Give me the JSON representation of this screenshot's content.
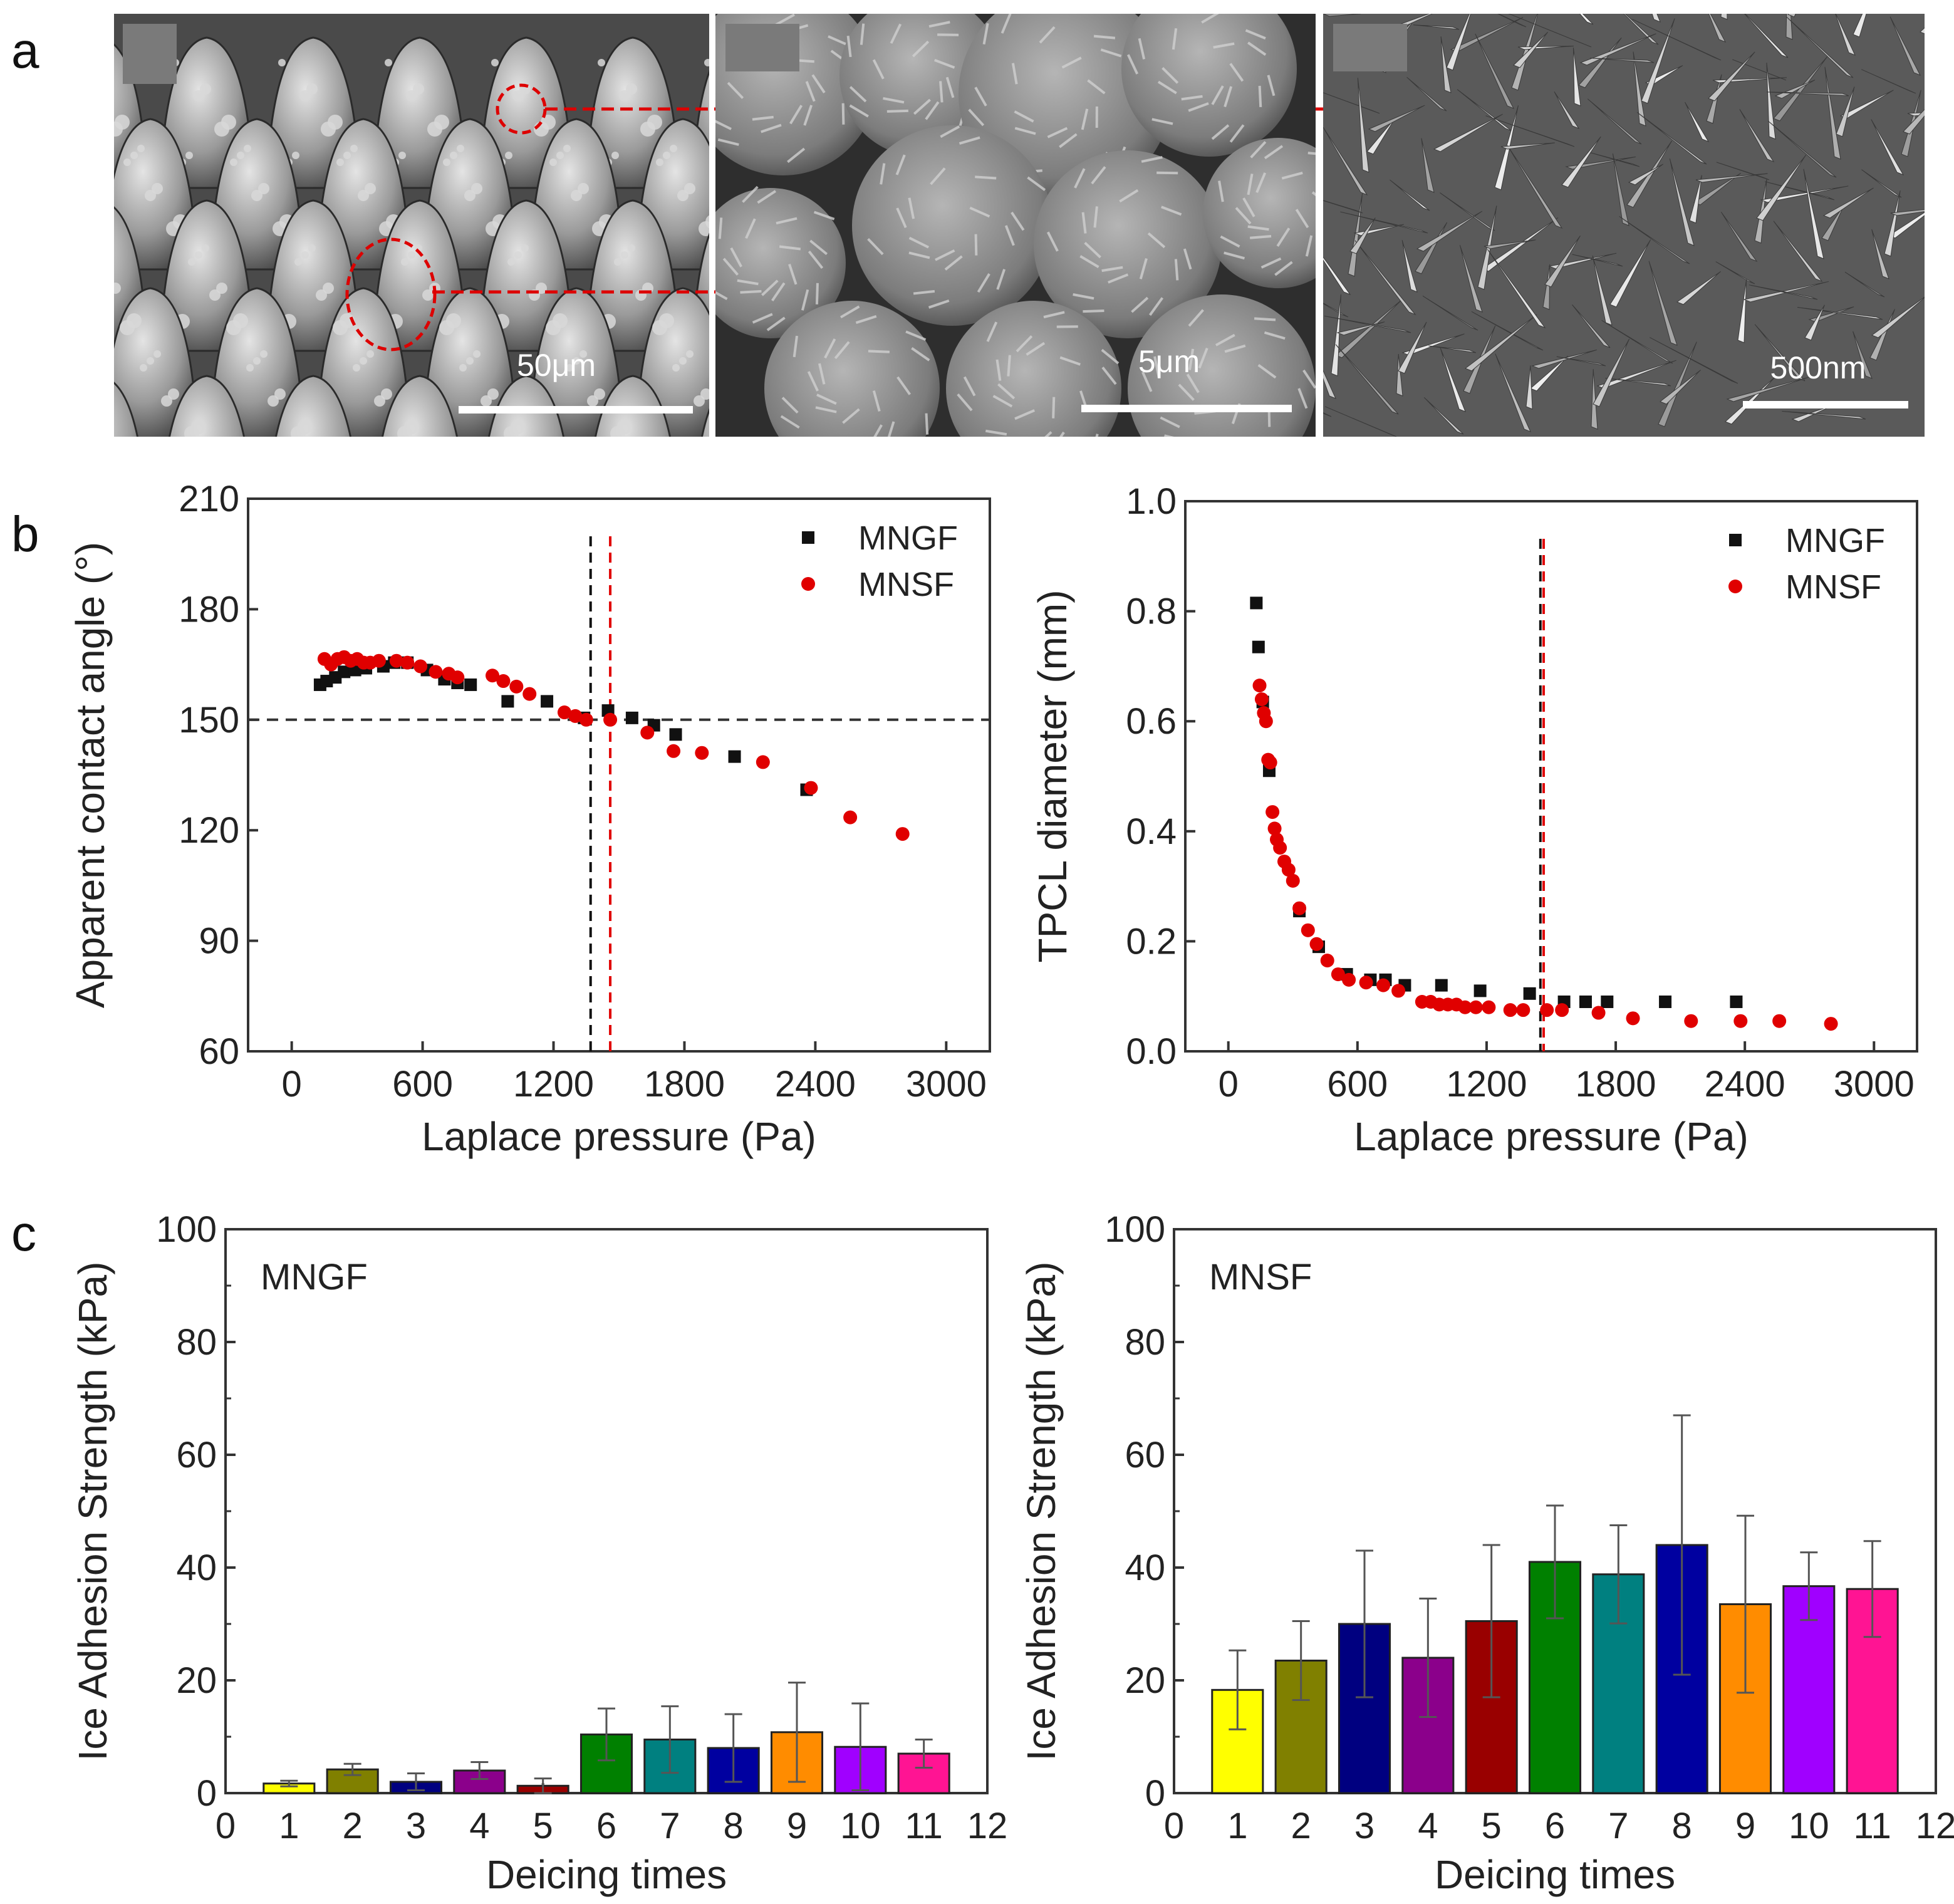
{
  "panel_labels": {
    "a": "a",
    "b": "b",
    "c": "c"
  },
  "colors": {
    "mngf": "#111111",
    "mnsf": "#e00000",
    "axis": "#333333",
    "bars": [
      "#ffff00",
      "#808000",
      "#000080",
      "#8b008b",
      "#990000",
      "#008000",
      "#008080",
      "#0000a0",
      "#ff8c00",
      "#a000ff",
      "#ff1493"
    ]
  },
  "sem_images": [
    {
      "scale_label": "50μm",
      "description_icon": "sem-micro-cone-icon"
    },
    {
      "scale_label": "5μm",
      "description_icon": "sem-nanoflower-icon"
    },
    {
      "scale_label": "500nm",
      "description_icon": "sem-nanosheet-icon"
    }
  ],
  "chart_data": [
    {
      "id": "contact-angle",
      "type": "scatter",
      "title": "",
      "xlabel": "Laplace pressure (Pa)",
      "ylabel": "Apparent contact angle (°)",
      "xlim": [
        -200,
        3200
      ],
      "ylim": [
        60,
        210
      ],
      "xticks": [
        0,
        600,
        1200,
        1800,
        2400,
        3000
      ],
      "yticks": [
        60,
        90,
        120,
        150,
        180,
        210
      ],
      "legend_position": "top-right",
      "reference_lines": {
        "horizontal": [
          150
        ],
        "vertical_mngf": 1370,
        "vertical_mnsf": 1460
      },
      "series": [
        {
          "name": "MNGF",
          "marker": "square",
          "x": [
            130,
            160,
            200,
            240,
            290,
            340,
            420,
            470,
            530,
            620,
            700,
            760,
            820,
            990,
            1170,
            1340,
            1450,
            1560,
            1660,
            1760,
            2030,
            2360
          ],
          "y": [
            159.5,
            160.5,
            161.5,
            163,
            163.5,
            164,
            164.5,
            165.5,
            165.5,
            163.5,
            161,
            160,
            159.5,
            155,
            155,
            150.5,
            152.5,
            150.5,
            148.5,
            146,
            140,
            131
          ]
        },
        {
          "name": "MNSF",
          "marker": "circle",
          "x": [
            150,
            180,
            210,
            240,
            270,
            300,
            330,
            360,
            400,
            480,
            530,
            590,
            660,
            720,
            760,
            920,
            970,
            1030,
            1090,
            1250,
            1300,
            1350,
            1460,
            1630,
            1750,
            1880,
            2160,
            2380,
            2560,
            2800
          ],
          "y": [
            166.5,
            165,
            166.5,
            167,
            166,
            166.5,
            165.5,
            165.5,
            166,
            166,
            165.5,
            164.5,
            163,
            162.5,
            161.5,
            162,
            160.5,
            159,
            157,
            152,
            151,
            150,
            150,
            146.5,
            141.5,
            141,
            138.5,
            131.5,
            123.5,
            119
          ]
        }
      ]
    },
    {
      "id": "tpcl-diameter",
      "type": "scatter",
      "title": "",
      "xlabel": "Laplace pressure (Pa)",
      "ylabel": "TPCL diameter (mm)",
      "xlim": [
        -200,
        3200
      ],
      "ylim": [
        0.0,
        1.0
      ],
      "xticks": [
        0,
        600,
        1200,
        1800,
        2400,
        3000
      ],
      "yticks": [
        0.0,
        0.2,
        0.4,
        0.6,
        0.8,
        1.0
      ],
      "legend_position": "top-right",
      "reference_lines": {
        "vertical_mngf": 1450,
        "vertical_mnsf": 1465
      },
      "series": [
        {
          "name": "MNGF",
          "marker": "square",
          "x": [
            130,
            140,
            160,
            190,
            330,
            420,
            550,
            660,
            730,
            820,
            990,
            1170,
            1400,
            1560,
            1660,
            1760,
            2030,
            2360
          ],
          "y": [
            0.815,
            0.735,
            0.635,
            0.51,
            0.255,
            0.19,
            0.14,
            0.13,
            0.13,
            0.12,
            0.12,
            0.11,
            0.105,
            0.09,
            0.09,
            0.09,
            0.09,
            0.09
          ]
        },
        {
          "name": "MNSF",
          "marker": "circle",
          "x": [
            145,
            155,
            165,
            175,
            185,
            195,
            205,
            215,
            225,
            240,
            260,
            280,
            300,
            330,
            370,
            410,
            460,
            510,
            560,
            640,
            720,
            790,
            900,
            940,
            980,
            1020,
            1060,
            1100,
            1150,
            1210,
            1310,
            1370,
            1480,
            1550,
            1720,
            1880,
            2150,
            2380,
            2560,
            2800
          ],
          "y": [
            0.665,
            0.64,
            0.615,
            0.6,
            0.53,
            0.525,
            0.435,
            0.405,
            0.385,
            0.37,
            0.345,
            0.33,
            0.31,
            0.26,
            0.22,
            0.195,
            0.165,
            0.14,
            0.13,
            0.125,
            0.12,
            0.11,
            0.09,
            0.09,
            0.085,
            0.085,
            0.085,
            0.08,
            0.08,
            0.08,
            0.075,
            0.075,
            0.075,
            0.075,
            0.07,
            0.06,
            0.055,
            0.055,
            0.055,
            0.05
          ]
        }
      ]
    },
    {
      "id": "mngf-ice",
      "type": "bar",
      "title": "MNGF",
      "xlabel": "Deicing times",
      "ylabel": "Ice Adhesion Strength (kPa)",
      "xlim": [
        0,
        12
      ],
      "ylim": [
        0,
        100
      ],
      "xticks": [
        0,
        1,
        2,
        3,
        4,
        5,
        6,
        7,
        8,
        9,
        10,
        11,
        12
      ],
      "yticks": [
        0,
        20,
        40,
        60,
        80,
        100
      ],
      "categories": [
        1,
        2,
        3,
        4,
        5,
        6,
        7,
        8,
        9,
        10,
        11
      ],
      "values": [
        1.7,
        4.2,
        2.0,
        4.0,
        1.3,
        10.4,
        9.5,
        8.0,
        10.8,
        8.2,
        7.0
      ],
      "errors": [
        0.5,
        1.0,
        1.5,
        1.5,
        1.3,
        4.6,
        5.9,
        6.0,
        8.8,
        7.7,
        2.5
      ]
    },
    {
      "id": "mnsf-ice",
      "type": "bar",
      "title": "MNSF",
      "xlabel": "Deicing times",
      "ylabel": "Ice Adhesion Strength (kPa)",
      "xlim": [
        0,
        12
      ],
      "ylim": [
        0,
        100
      ],
      "xticks": [
        0,
        1,
        2,
        3,
        4,
        5,
        6,
        7,
        8,
        9,
        10,
        11,
        12
      ],
      "yticks": [
        0,
        20,
        40,
        60,
        80,
        100
      ],
      "categories": [
        1,
        2,
        3,
        4,
        5,
        6,
        7,
        8,
        9,
        10,
        11
      ],
      "values": [
        18.3,
        23.5,
        30.0,
        24.0,
        30.5,
        41.0,
        38.8,
        44.0,
        33.5,
        36.7,
        36.2
      ],
      "errors": [
        7.0,
        7.0,
        13.0,
        10.5,
        13.5,
        10.0,
        8.7,
        23.0,
        15.7,
        6.0,
        8.5
      ]
    }
  ]
}
